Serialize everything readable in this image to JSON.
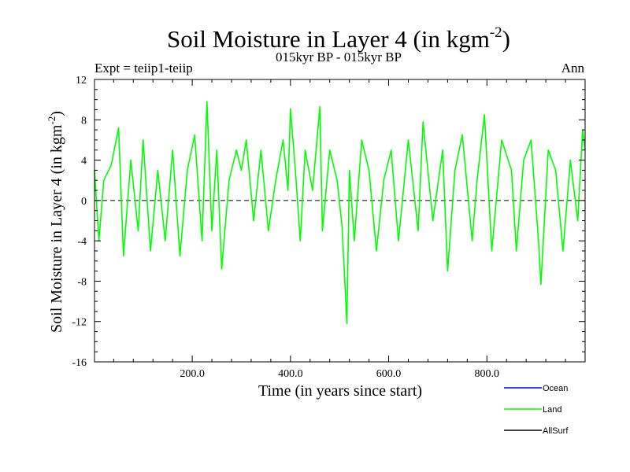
{
  "chart_data": {
    "type": "line",
    "title": "Soil Moisture in Layer 4 (in kgm",
    "title_sup": "-2",
    "title_close": ")",
    "subtitle_left": "Expt = teiip1-teiip",
    "subtitle_center": "015kyr BP - 015kyr BP",
    "subtitle_right": "Ann",
    "xlabel": "Time (in years since start)",
    "ylabel": "Soil Moisture in Layer 4 (in kgm",
    "ylabel_sup": "-2",
    "ylabel_close": ")",
    "xlim": [
      1,
      1000
    ],
    "ylim": [
      -16,
      12
    ],
    "xticks": [
      200,
      400,
      600,
      800
    ],
    "xtick_labels": [
      "200.0",
      "400.0",
      "600.0",
      "800.0"
    ],
    "yticks": [
      -16,
      -12,
      -8,
      -4,
      0,
      4,
      8,
      12
    ],
    "ytick_labels": [
      "-16",
      "-12",
      "-8",
      "-4",
      "0",
      "4",
      "8",
      "12"
    ],
    "zero_line": true,
    "grid": false,
    "legend_position": "bottom-right",
    "series": [
      {
        "name": "Ocean",
        "color": "#0000ff",
        "x": [],
        "values": []
      },
      {
        "name": "Land",
        "color": "#00ff00",
        "x": [
          1,
          10,
          20,
          35,
          50,
          60,
          75,
          90,
          100,
          115,
          130,
          145,
          160,
          175,
          190,
          205,
          220,
          230,
          240,
          250,
          260,
          275,
          290,
          300,
          310,
          325,
          340,
          355,
          370,
          385,
          395,
          400,
          410,
          420,
          430,
          445,
          460,
          465,
          480,
          495,
          505,
          515,
          520,
          530,
          545,
          560,
          575,
          590,
          605,
          620,
          640,
          660,
          670,
          690,
          710,
          720,
          735,
          750,
          770,
          780,
          795,
          810,
          830,
          850,
          860,
          875,
          890,
          905,
          910,
          925,
          940,
          955,
          970,
          985,
          995,
          1000
        ],
        "values": [
          3,
          -4,
          2,
          3.5,
          7.2,
          -5.5,
          4,
          -3,
          6,
          -5,
          3,
          -4,
          5,
          -5.5,
          3,
          6.5,
          -4,
          9.8,
          -3,
          5,
          -6.8,
          2,
          5,
          3,
          6,
          -2,
          5,
          -3,
          2,
          6,
          1,
          9.1,
          3,
          -4,
          5,
          1,
          9.3,
          -3,
          5,
          2,
          -2.5,
          -12.2,
          3,
          -4,
          6,
          3,
          -5,
          2,
          5,
          -4,
          6,
          -3,
          7.8,
          -2,
          5,
          -7,
          3,
          6.5,
          -4,
          2,
          8.5,
          -5,
          6,
          3,
          -5,
          4,
          6,
          -4,
          -8.3,
          5,
          3,
          -5,
          4,
          -2,
          7,
          5
        ]
      },
      {
        "name": "AllSurf",
        "color": "#000000",
        "x": [],
        "values": []
      }
    ]
  }
}
